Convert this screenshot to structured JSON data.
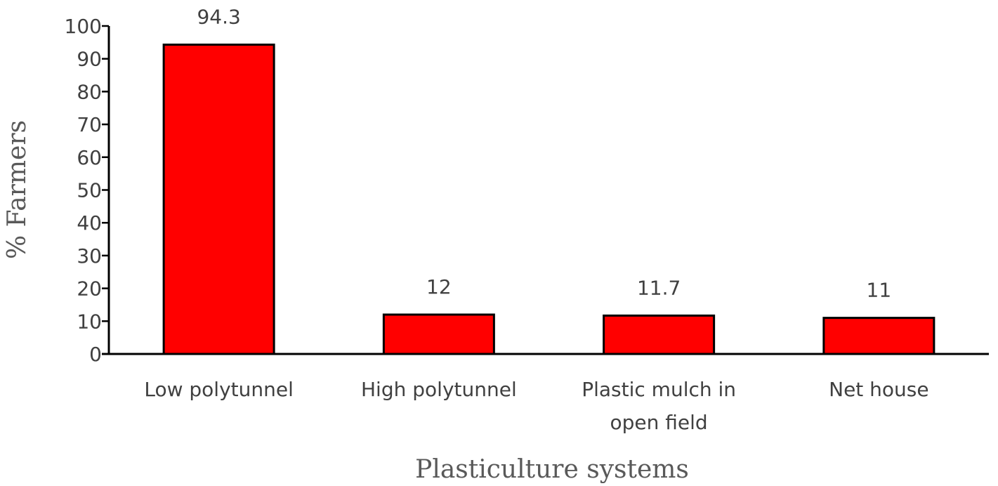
{
  "chart_data": {
    "type": "bar",
    "title": "",
    "xlabel": "Plasticulture systems",
    "ylabel": "% Farmers",
    "categories": [
      [
        "Low polytunnel"
      ],
      [
        "High polytunnel"
      ],
      [
        "Plastic mulch in",
        "open field"
      ],
      [
        "Net house"
      ]
    ],
    "values": [
      94.3,
      12,
      11.7,
      11
    ],
    "data_labels": [
      "94.3",
      "12",
      "11.7",
      "11"
    ],
    "ylim": [
      0,
      100
    ],
    "yticks": [
      0,
      10,
      20,
      30,
      40,
      50,
      60,
      70,
      80,
      90,
      100
    ],
    "bar_color": "#FF0000",
    "bar_edge_color": "#000000",
    "grid": false,
    "legend": "none"
  }
}
